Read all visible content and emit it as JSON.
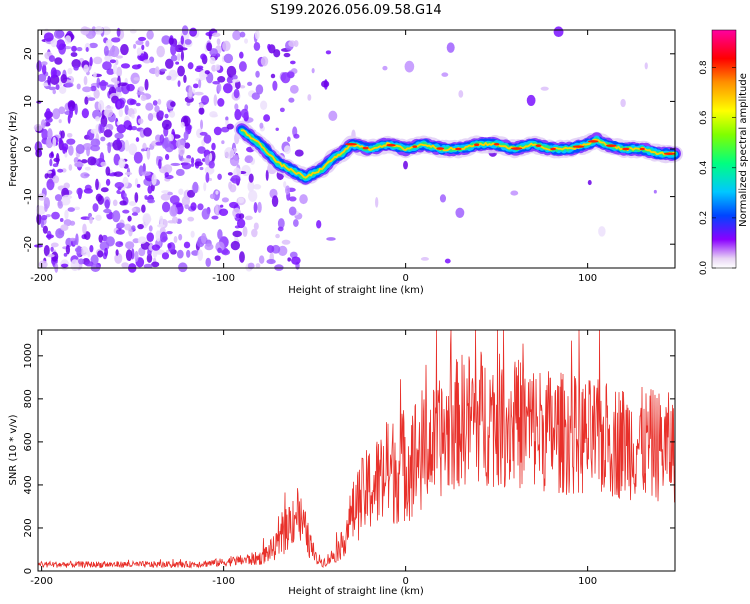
{
  "title": "S199.2026.056.09.58.G14",
  "chart_data": [
    {
      "type": "heatmap",
      "xlabel": "Height of straight line (km)",
      "ylabel": "Frequency (Hz)",
      "xlim": [
        -202,
        148
      ],
      "ylim": [
        -25,
        25
      ],
      "x_ticks": [
        -200,
        -100,
        0,
        100
      ],
      "y_ticks": [
        -20,
        -10,
        0,
        10,
        20
      ],
      "colorbar": {
        "label": "Normalized spectral amplitude",
        "range": [
          0.0,
          0.95
        ],
        "ticks": [
          0.0,
          0.2,
          0.4,
          0.6,
          0.8
        ]
      },
      "ridge": {
        "x": [
          -90,
          -80,
          -70,
          -60,
          -55,
          -50,
          -45,
          -40,
          -35,
          -30,
          -20,
          -10,
          0,
          10,
          20,
          30,
          40,
          50,
          60,
          70,
          80,
          90,
          100,
          105,
          110,
          120,
          130,
          140,
          148
        ],
        "y": [
          4,
          1,
          -3,
          -5,
          -6,
          -5,
          -4,
          -2,
          -1,
          1,
          0,
          1,
          0,
          1,
          0,
          0,
          1,
          1,
          0,
          1,
          0,
          0,
          1,
          2,
          1,
          0,
          0,
          -1,
          -1
        ]
      }
    },
    {
      "type": "line",
      "xlabel": "Height of straight line (km)",
      "ylabel": "SNR (10 * v/v)",
      "xlim": [
        -202,
        148
      ],
      "ylim": [
        0,
        1120
      ],
      "x_ticks": [
        -200,
        -100,
        0,
        100
      ],
      "y_ticks": [
        0,
        200,
        400,
        600,
        800,
        1000
      ],
      "color": "#e8302a",
      "envelope": {
        "x": [
          -202,
          -150,
          -120,
          -100,
          -90,
          -80,
          -70,
          -65,
          -60,
          -55,
          -50,
          -45,
          -40,
          -35,
          -30,
          -25,
          -20,
          -10,
          0,
          10,
          20,
          30,
          40,
          50,
          60,
          80,
          100,
          120,
          140,
          148
        ],
        "y": [
          30,
          30,
          30,
          40,
          50,
          60,
          120,
          200,
          280,
          180,
          60,
          40,
          70,
          120,
          250,
          330,
          380,
          450,
          500,
          560,
          620,
          700,
          720,
          700,
          690,
          650,
          620,
          600,
          580,
          570
        ]
      }
    }
  ]
}
